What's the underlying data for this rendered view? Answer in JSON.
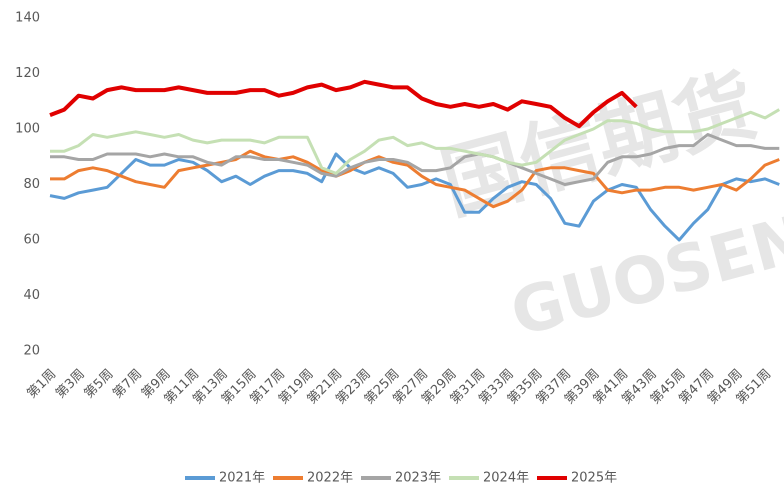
{
  "chart_data": {
    "type": "line",
    "watermark": [
      "国信期货",
      "GUOSEN"
    ],
    "categories": [
      "第1周",
      null,
      "第3周",
      null,
      "第5周",
      null,
      "第7周",
      null,
      "第9周",
      null,
      "第11周",
      null,
      "第13周",
      null,
      "第15周",
      null,
      "第17周",
      null,
      "第19周",
      null,
      "第21周",
      null,
      "第23周",
      null,
      "第25周",
      null,
      "第27周",
      null,
      "第29周",
      null,
      "第31周",
      null,
      "第33周",
      null,
      "第35周",
      null,
      "第37周",
      null,
      "第39周",
      null,
      "第41周",
      null,
      "第43周",
      null,
      "第45周",
      null,
      "第47周",
      null,
      "第49周",
      null,
      "第51周",
      null
    ],
    "ylim": [
      20,
      140
    ],
    "yticks": [
      20,
      40,
      60,
      80,
      100,
      120,
      140
    ],
    "grid": false,
    "legend": "bottom",
    "series": [
      {
        "name": "2021年",
        "color": "#5b9bd5",
        "values": [
          76,
          75,
          77,
          78,
          79,
          84,
          89,
          87,
          87,
          89,
          88,
          85,
          81,
          83,
          80,
          83,
          85,
          85,
          84,
          81,
          91,
          86,
          84,
          86,
          84,
          79,
          80,
          82,
          80,
          70,
          70,
          75,
          79,
          81,
          80,
          75,
          66,
          65,
          74,
          78,
          80,
          79,
          71,
          65,
          60,
          66,
          71,
          80,
          82,
          81,
          82,
          80
        ]
      },
      {
        "name": "2022年",
        "color": "#ed7d31",
        "values": [
          82,
          82,
          85,
          86,
          85,
          83,
          81,
          80,
          79,
          85,
          86,
          87,
          88,
          89,
          92,
          90,
          89,
          90,
          88,
          85,
          83,
          85,
          88,
          90,
          88,
          87,
          83,
          80,
          79,
          78,
          75,
          72,
          74,
          78,
          85,
          86,
          86,
          85,
          84,
          78,
          77,
          78,
          78,
          79,
          79,
          78,
          79,
          80,
          78,
          82,
          87,
          89
        ]
      },
      {
        "name": "2023年",
        "color": "#a5a5a5",
        "values": [
          90,
          90,
          89,
          89,
          91,
          91,
          91,
          90,
          91,
          90,
          90,
          88,
          87,
          90,
          90,
          89,
          89,
          88,
          87,
          84,
          83,
          86,
          88,
          89,
          89,
          88,
          85,
          85,
          86,
          90,
          91,
          90,
          88,
          86,
          84,
          82,
          80,
          81,
          82,
          88,
          90,
          90,
          91,
          93,
          94,
          94,
          98,
          96,
          94,
          94,
          93,
          93
        ]
      },
      {
        "name": "2024年",
        "color": "#c5e0b4",
        "values": [
          92,
          92,
          94,
          98,
          97,
          98,
          99,
          98,
          97,
          98,
          96,
          95,
          96,
          96,
          96,
          95,
          97,
          97,
          97,
          86,
          84,
          89,
          92,
          96,
          97,
          94,
          95,
          93,
          93,
          92,
          91,
          90,
          88,
          87,
          88,
          92,
          96,
          98,
          100,
          103,
          103,
          102,
          100,
          99,
          99,
          99,
          100,
          102,
          104,
          106,
          104,
          107
        ]
      },
      {
        "name": "2025年",
        "color": "#e00000",
        "values": [
          105,
          107,
          112,
          111,
          114,
          115,
          114,
          114,
          114,
          115,
          114,
          113,
          113,
          113,
          114,
          114,
          112,
          113,
          115,
          116,
          114,
          115,
          117,
          116,
          115,
          115,
          111,
          109,
          108,
          109,
          108,
          109,
          107,
          110,
          109,
          108,
          104,
          101,
          106,
          110,
          113,
          108,
          null,
          null,
          null,
          null,
          null,
          null,
          null,
          null,
          null,
          null
        ]
      }
    ]
  }
}
